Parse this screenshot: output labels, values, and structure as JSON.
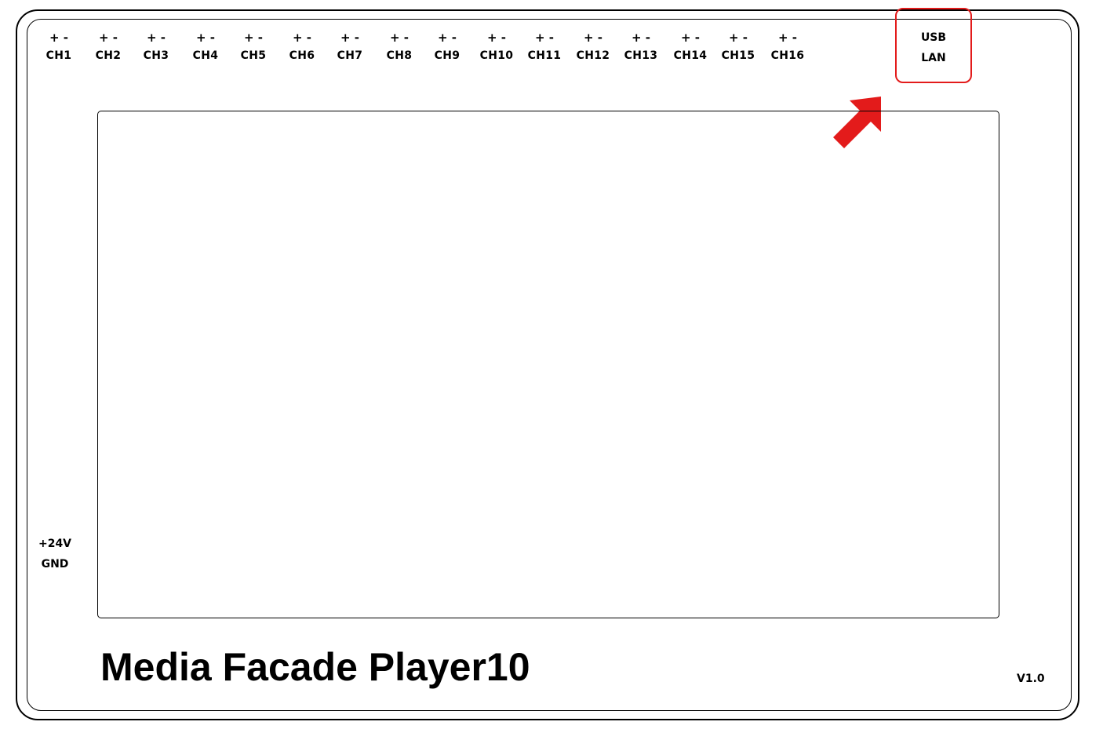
{
  "board": {
    "title": "Media Facade Player10",
    "version": "V1.0"
  },
  "channels": [
    {
      "polarity": "+ -",
      "label": "CH1"
    },
    {
      "polarity": "+ -",
      "label": "CH2"
    },
    {
      "polarity": "+ -",
      "label": "CH3"
    },
    {
      "polarity": "+ -",
      "label": "CH4"
    },
    {
      "polarity": "+ -",
      "label": "CH5"
    },
    {
      "polarity": "+ -",
      "label": "CH6"
    },
    {
      "polarity": "+ -",
      "label": "CH7"
    },
    {
      "polarity": "+ -",
      "label": "CH8"
    },
    {
      "polarity": "+ -",
      "label": "CH9"
    },
    {
      "polarity": "+ -",
      "label": "CH10"
    },
    {
      "polarity": "+ -",
      "label": "CH11"
    },
    {
      "polarity": "+ -",
      "label": "CH12"
    },
    {
      "polarity": "+ -",
      "label": "CH13"
    },
    {
      "polarity": "+ -",
      "label": "CH14"
    },
    {
      "polarity": "+ -",
      "label": "CH15"
    },
    {
      "polarity": "+ -",
      "label": "CH16"
    }
  ],
  "ports": {
    "usb": "USB",
    "lan": "LAN"
  },
  "power": {
    "positive": "+24V",
    "ground": "GND"
  },
  "colors": {
    "highlight": "#e31b1b",
    "outline": "#000000"
  },
  "icons": {
    "pointer": "arrow-up-right-icon"
  }
}
